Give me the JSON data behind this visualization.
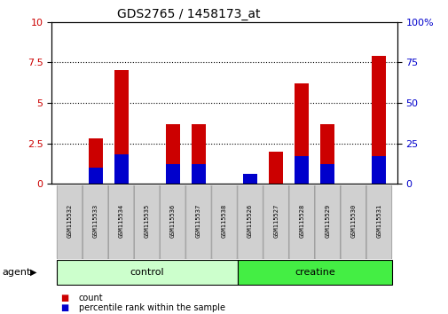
{
  "title": "GDS2765 / 1458173_at",
  "samples": [
    "GSM115532",
    "GSM115533",
    "GSM115534",
    "GSM115535",
    "GSM115536",
    "GSM115537",
    "GSM115538",
    "GSM115526",
    "GSM115527",
    "GSM115528",
    "GSM115529",
    "GSM115530",
    "GSM115531"
  ],
  "count_values": [
    0,
    2.8,
    7.0,
    0,
    3.7,
    3.7,
    0,
    0,
    2.0,
    6.2,
    3.7,
    0,
    7.9
  ],
  "percentile_values": [
    0,
    1.0,
    1.8,
    0,
    1.2,
    1.2,
    0,
    0.6,
    0,
    1.7,
    1.2,
    0,
    1.7
  ],
  "groups": [
    {
      "label": "control",
      "start": 0,
      "end": 6,
      "color": "#ccffcc"
    },
    {
      "label": "creatine",
      "start": 7,
      "end": 12,
      "color": "#44ee44"
    }
  ],
  "group_row_label": "agent",
  "ylim_left": [
    0,
    10
  ],
  "ylim_right": [
    0,
    100
  ],
  "yticks_left": [
    0,
    2.5,
    5.0,
    7.5,
    10
  ],
  "yticks_right": [
    0,
    25,
    50,
    75,
    100
  ],
  "count_color": "#cc0000",
  "percentile_color": "#0000cc",
  "bg_color": "#ffffff",
  "tick_label_color_left": "#cc0000",
  "tick_label_color_right": "#0000cc",
  "sample_box_color": "#d0d0d0",
  "sample_box_edge": "#999999"
}
